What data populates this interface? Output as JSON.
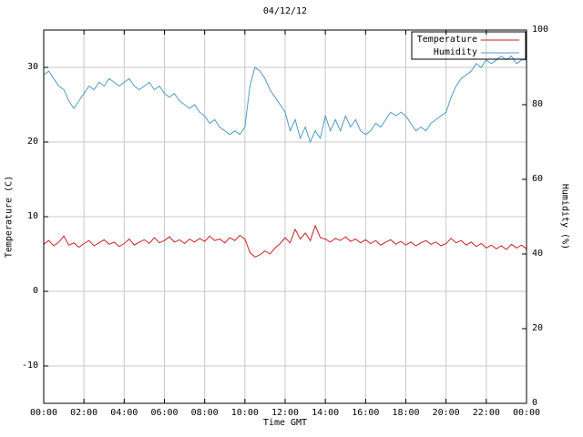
{
  "axes": {
    "x_label": "Time GMT",
    "y_left_label": "Temperature (C)",
    "y_right_label": "Humidity (%)",
    "xlim_hours": [
      0,
      24
    ],
    "ylim_left": [
      -15,
      35
    ],
    "ylim_right": [
      0,
      100
    ],
    "x_tick_hours": [
      0,
      2,
      4,
      6,
      8,
      10,
      12,
      14,
      16,
      18,
      20,
      22,
      24
    ],
    "x_tick_labels": [
      "00:00",
      "02:00",
      "04:00",
      "06:00",
      "08:00",
      "10:00",
      "12:00",
      "14:00",
      "16:00",
      "18:00",
      "20:00",
      "22:00",
      "00:00"
    ],
    "y_left_ticks": [
      -10,
      0,
      10,
      20,
      30
    ],
    "y_right_ticks": [
      0,
      20,
      40,
      60,
      80,
      100
    ],
    "grid": true
  },
  "colors": {
    "grid": "#c9c9c9",
    "border": "#000000",
    "background": "#ffffff"
  },
  "legend": {
    "position": "top-right",
    "box": true
  },
  "chart_data": {
    "type": "line",
    "title": "04/12/12",
    "xlabel": "Time GMT",
    "ylabel_left": "Temperature (C)",
    "ylabel_right": "Humidity (%)",
    "x_hours": {
      "start": 0,
      "step": 0.25,
      "count": 97
    },
    "series": [
      {
        "name": "Temperature",
        "axis": "left",
        "unit": "C",
        "color": "#cc2222",
        "values": [
          6.3,
          6.8,
          6.1,
          6.6,
          7.4,
          6.2,
          6.5,
          5.9,
          6.4,
          6.8,
          6.1,
          6.5,
          6.9,
          6.3,
          6.6,
          6.0,
          6.4,
          7.0,
          6.2,
          6.6,
          6.9,
          6.4,
          7.2,
          6.5,
          6.8,
          7.3,
          6.6,
          6.9,
          6.4,
          7.0,
          6.6,
          7.1,
          6.7,
          7.4,
          6.8,
          7.0,
          6.5,
          7.2,
          6.8,
          7.5,
          7.0,
          5.2,
          4.6,
          4.9,
          5.4,
          5.0,
          5.8,
          6.4,
          7.2,
          6.5,
          8.3,
          7.0,
          7.8,
          6.8,
          8.8,
          7.2,
          7.0,
          6.6,
          7.1,
          6.8,
          7.3,
          6.7,
          7.0,
          6.5,
          6.9,
          6.4,
          6.8,
          6.2,
          6.6,
          6.9,
          6.3,
          6.7,
          6.2,
          6.6,
          6.1,
          6.5,
          6.8,
          6.3,
          6.6,
          6.1,
          6.4,
          7.1,
          6.5,
          6.8,
          6.2,
          6.6,
          6.0,
          6.4,
          5.8,
          6.2,
          5.7,
          6.1,
          5.6,
          6.3,
          5.8,
          6.2,
          5.7
        ]
      },
      {
        "name": "Humidity",
        "axis": "right",
        "unit": "%",
        "color": "#4f9bcb",
        "values": [
          88,
          89,
          87,
          85,
          84,
          81,
          79,
          81,
          83,
          85,
          84,
          86,
          85,
          87,
          86,
          85,
          86,
          87,
          85,
          84,
          85,
          86,
          84,
          85,
          83,
          82,
          83,
          81,
          80,
          79,
          80,
          78,
          77,
          75,
          76,
          74,
          73,
          72,
          73,
          72,
          74,
          85,
          90,
          89,
          87,
          84,
          82,
          80,
          78,
          73,
          76,
          71,
          74,
          70,
          73,
          71,
          77,
          73,
          76,
          73,
          77,
          74,
          76,
          73,
          72,
          73,
          75,
          74,
          76,
          78,
          77,
          78,
          77,
          75,
          73,
          74,
          73,
          75,
          76,
          77,
          78,
          82,
          85,
          87,
          88,
          89,
          91,
          90,
          92,
          91,
          92,
          93,
          92,
          93,
          91,
          92,
          92
        ]
      }
    ]
  }
}
